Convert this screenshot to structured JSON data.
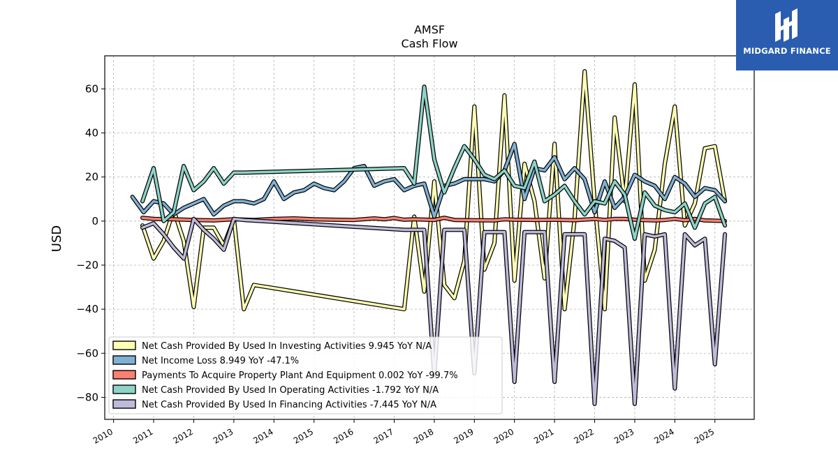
{
  "brand": {
    "name": "MIDGARD FINANCE",
    "bg_color": "#2a5cb0"
  },
  "chart_data": {
    "type": "line",
    "title": "AMSF",
    "subtitle": "Cash Flow",
    "xlabel": "",
    "ylabel": "USD",
    "x_ticks": [
      "2010",
      "2011",
      "2012",
      "2013",
      "2014",
      "2015",
      "2016",
      "2017",
      "2018",
      "2019",
      "2020",
      "2021",
      "2022",
      "2023",
      "2024",
      "2025"
    ],
    "y_ticks": [
      60,
      40,
      20,
      0,
      -20,
      -40,
      -60,
      -80
    ],
    "xlim": [
      2009.78,
      2025.98
    ],
    "ylim": [
      -90,
      75
    ],
    "grid": true,
    "legend_position": "lower-left",
    "series": [
      {
        "name": "Net Cash Provided By Used In Investing Activities",
        "legend": "Net Cash Provided By Used In Investing Activities  9.945 YoY N/A",
        "color": "#ffffb3",
        "points": [
          [
            2010.72,
            -2
          ],
          [
            2011.0,
            -17
          ],
          [
            2011.25,
            -9
          ],
          [
            2011.5,
            5
          ],
          [
            2011.75,
            -9
          ],
          [
            2012.0,
            -39
          ],
          [
            2012.25,
            -3
          ],
          [
            2012.5,
            -3
          ],
          [
            2012.75,
            -11
          ],
          [
            2013.0,
            1
          ],
          [
            2013.25,
            -40
          ],
          [
            2013.5,
            -29
          ],
          [
            2017.25,
            -40
          ],
          [
            2017.5,
            2
          ],
          [
            2017.75,
            -32
          ],
          [
            2018.0,
            18
          ],
          [
            2018.25,
            -29
          ],
          [
            2018.5,
            -35
          ],
          [
            2018.75,
            -18
          ],
          [
            2019.0,
            52
          ],
          [
            2019.25,
            -22
          ],
          [
            2019.5,
            -10
          ],
          [
            2019.75,
            57
          ],
          [
            2020.0,
            -27
          ],
          [
            2020.25,
            26
          ],
          [
            2020.5,
            9
          ],
          [
            2020.75,
            -26
          ],
          [
            2021.0,
            35
          ],
          [
            2021.25,
            -40
          ],
          [
            2021.5,
            1
          ],
          [
            2021.75,
            68
          ],
          [
            2022.0,
            9
          ],
          [
            2022.25,
            -40
          ],
          [
            2022.5,
            47
          ],
          [
            2022.75,
            9
          ],
          [
            2023.0,
            62
          ],
          [
            2023.25,
            -27
          ],
          [
            2023.5,
            -13
          ],
          [
            2023.75,
            26
          ],
          [
            2024.0,
            52
          ],
          [
            2024.25,
            -2
          ],
          [
            2024.5,
            8
          ],
          [
            2024.75,
            33
          ],
          [
            2025.0,
            34
          ],
          [
            2025.25,
            9
          ]
        ]
      },
      {
        "name": "Net Income Loss",
        "legend": "Net Income Loss  8.949 YoY -47.1%",
        "color": "#80b1d3",
        "points": [
          [
            2010.47,
            11
          ],
          [
            2010.75,
            4
          ],
          [
            2011.0,
            9
          ],
          [
            2011.25,
            8
          ],
          [
            2011.5,
            3
          ],
          [
            2011.75,
            6
          ],
          [
            2012.0,
            8
          ],
          [
            2012.25,
            10
          ],
          [
            2012.5,
            3
          ],
          [
            2012.75,
            7
          ],
          [
            2013.0,
            9
          ],
          [
            2013.25,
            9
          ],
          [
            2013.5,
            8
          ],
          [
            2013.75,
            10
          ],
          [
            2014.0,
            18
          ],
          [
            2014.25,
            10
          ],
          [
            2014.5,
            13
          ],
          [
            2014.75,
            14
          ],
          [
            2015.0,
            17
          ],
          [
            2015.25,
            15
          ],
          [
            2015.5,
            14
          ],
          [
            2015.75,
            18
          ],
          [
            2016.0,
            24
          ],
          [
            2016.25,
            25
          ],
          [
            2016.5,
            16
          ],
          [
            2016.75,
            18
          ],
          [
            2017.0,
            19
          ],
          [
            2017.25,
            14
          ],
          [
            2017.5,
            16
          ],
          [
            2017.75,
            17
          ],
          [
            2018.0,
            2
          ],
          [
            2018.25,
            16
          ],
          [
            2018.5,
            17
          ],
          [
            2018.75,
            19
          ],
          [
            2019.0,
            19
          ],
          [
            2019.25,
            19
          ],
          [
            2019.5,
            18
          ],
          [
            2019.75,
            23
          ],
          [
            2020.0,
            35
          ],
          [
            2020.25,
            10
          ],
          [
            2020.5,
            24
          ],
          [
            2020.75,
            23
          ],
          [
            2021.0,
            29
          ],
          [
            2021.25,
            19
          ],
          [
            2021.5,
            24
          ],
          [
            2021.75,
            19
          ],
          [
            2022.0,
            4
          ],
          [
            2022.25,
            18
          ],
          [
            2022.5,
            6
          ],
          [
            2022.75,
            11
          ],
          [
            2023.0,
            21
          ],
          [
            2023.25,
            18
          ],
          [
            2023.5,
            16
          ],
          [
            2023.75,
            10
          ],
          [
            2024.0,
            20
          ],
          [
            2024.25,
            17
          ],
          [
            2024.5,
            11
          ],
          [
            2024.75,
            15
          ],
          [
            2025.0,
            14
          ],
          [
            2025.25,
            9
          ]
        ]
      },
      {
        "name": "Payments To Acquire Property Plant And Equipment",
        "legend": "Payments To Acquire Property Plant And Equipment  0.002 YoY -99.7%",
        "color": "#fb8072",
        "points": [
          [
            2010.72,
            1.5
          ],
          [
            2011.0,
            1
          ],
          [
            2011.5,
            0.8
          ],
          [
            2012.0,
            0.5
          ],
          [
            2012.5,
            0.3
          ],
          [
            2013.0,
            0.8
          ],
          [
            2013.5,
            0.5
          ],
          [
            2014.0,
            1
          ],
          [
            2014.5,
            1.2
          ],
          [
            2015.0,
            0.8
          ],
          [
            2015.5,
            0.6
          ],
          [
            2016.0,
            0.5
          ],
          [
            2016.5,
            1.2
          ],
          [
            2016.75,
            0.8
          ],
          [
            2017.0,
            1.4
          ],
          [
            2017.25,
            0.6
          ],
          [
            2017.5,
            0.8
          ],
          [
            2018.0,
            0.5
          ],
          [
            2018.25,
            1.5
          ],
          [
            2018.5,
            0.5
          ],
          [
            2019.0,
            0.4
          ],
          [
            2019.5,
            0.3
          ],
          [
            2019.75,
            0.8
          ],
          [
            2020.0,
            0.6
          ],
          [
            2020.5,
            0.5
          ],
          [
            2021.0,
            0.6
          ],
          [
            2021.5,
            0.4
          ],
          [
            2022.0,
            1
          ],
          [
            2022.25,
            0.5
          ],
          [
            2022.5,
            1
          ],
          [
            2022.75,
            1
          ],
          [
            2023.0,
            0.6
          ],
          [
            2023.5,
            0.3
          ],
          [
            2023.75,
            0.5
          ],
          [
            2024.0,
            1
          ],
          [
            2024.25,
            0.4
          ],
          [
            2024.5,
            1
          ],
          [
            2024.75,
            0.3
          ],
          [
            2025.0,
            0.2
          ],
          [
            2025.25,
            0
          ]
        ]
      },
      {
        "name": "Net Cash Provided By Used In Operating Activities",
        "legend": "Net Cash Provided By Used In Operating Activities  -1.792 YoY N/A",
        "color": "#8dd3c7",
        "points": [
          [
            2010.72,
            9
          ],
          [
            2011.0,
            24
          ],
          [
            2011.25,
            0
          ],
          [
            2011.5,
            4
          ],
          [
            2011.75,
            25
          ],
          [
            2012.0,
            14
          ],
          [
            2012.25,
            18
          ],
          [
            2012.5,
            24
          ],
          [
            2012.75,
            17
          ],
          [
            2013.0,
            22
          ],
          [
            2013.25,
            22
          ],
          [
            2017.25,
            24
          ],
          [
            2017.5,
            17
          ],
          [
            2017.75,
            61
          ],
          [
            2018.0,
            28
          ],
          [
            2018.25,
            13
          ],
          [
            2018.5,
            24
          ],
          [
            2018.75,
            34
          ],
          [
            2019.0,
            28
          ],
          [
            2019.25,
            21
          ],
          [
            2019.5,
            19
          ],
          [
            2019.75,
            23
          ],
          [
            2020.0,
            16
          ],
          [
            2020.25,
            15
          ],
          [
            2020.5,
            27
          ],
          [
            2020.75,
            9
          ],
          [
            2021.0,
            12
          ],
          [
            2021.25,
            16
          ],
          [
            2021.5,
            9
          ],
          [
            2021.75,
            3
          ],
          [
            2022.0,
            9
          ],
          [
            2022.25,
            8
          ],
          [
            2022.5,
            18
          ],
          [
            2022.75,
            12
          ],
          [
            2023.0,
            -8
          ],
          [
            2023.25,
            13
          ],
          [
            2023.5,
            7
          ],
          [
            2023.75,
            5
          ],
          [
            2024.0,
            4
          ],
          [
            2024.25,
            8
          ],
          [
            2024.5,
            -3
          ],
          [
            2024.75,
            8
          ],
          [
            2025.0,
            11
          ],
          [
            2025.25,
            -2
          ]
        ]
      },
      {
        "name": "Net Cash Provided By Used In Financing Activities",
        "legend": "Net Cash Provided By Used In Financing Activities  -7.445 YoY N/A",
        "color": "#bebada",
        "points": [
          [
            2010.72,
            -3
          ],
          [
            2011.0,
            -1
          ],
          [
            2011.25,
            -6
          ],
          [
            2011.5,
            -12
          ],
          [
            2011.75,
            -17
          ],
          [
            2012.0,
            1
          ],
          [
            2012.25,
            -4
          ],
          [
            2012.5,
            -8
          ],
          [
            2012.75,
            -13
          ],
          [
            2013.0,
            1
          ],
          [
            2013.25,
            0.5
          ],
          [
            2017.25,
            -4
          ],
          [
            2017.5,
            -4
          ],
          [
            2017.75,
            -4
          ],
          [
            2018.0,
            -70
          ],
          [
            2018.25,
            -4
          ],
          [
            2018.5,
            -4
          ],
          [
            2018.75,
            -4
          ],
          [
            2019.0,
            -69
          ],
          [
            2019.25,
            -5
          ],
          [
            2019.5,
            -5
          ],
          [
            2019.75,
            -5
          ],
          [
            2020.0,
            -73
          ],
          [
            2020.25,
            -5
          ],
          [
            2020.5,
            -5
          ],
          [
            2020.75,
            -5
          ],
          [
            2021.0,
            -73
          ],
          [
            2021.25,
            -6
          ],
          [
            2021.5,
            -6
          ],
          [
            2021.75,
            -6
          ],
          [
            2022.0,
            -83
          ],
          [
            2022.25,
            -8
          ],
          [
            2022.5,
            -9
          ],
          [
            2022.75,
            -12
          ],
          [
            2023.0,
            -83
          ],
          [
            2023.25,
            -6
          ],
          [
            2023.5,
            -7
          ],
          [
            2023.75,
            -6
          ],
          [
            2024.0,
            -76
          ],
          [
            2024.25,
            -6
          ],
          [
            2024.5,
            -11
          ],
          [
            2024.75,
            -8
          ],
          [
            2025.0,
            -65
          ],
          [
            2025.25,
            -6
          ]
        ]
      }
    ]
  }
}
